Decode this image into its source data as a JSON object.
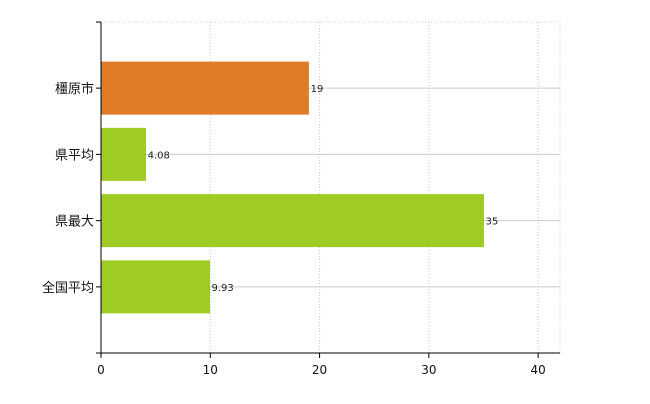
{
  "chart_data": {
    "type": "bar",
    "orientation": "horizontal",
    "categories": [
      "橿原市",
      "県平均",
      "県最大",
      "全国平均"
    ],
    "values": [
      19,
      4.08,
      35,
      9.93
    ],
    "value_labels": [
      "19",
      "4.08",
      "35",
      "9.93"
    ],
    "bar_colors": [
      "#e07b26",
      "#9fcc23",
      "#9fcc23",
      "#9fcc23"
    ],
    "xlim": [
      0,
      42
    ],
    "x_ticks": [
      0,
      10,
      20,
      30,
      40
    ],
    "x_tick_labels": [
      "0",
      "10",
      "20",
      "30",
      "40"
    ],
    "grid": true,
    "grid_style": "dotted vertical",
    "title": "",
    "xlabel": "",
    "ylabel": ""
  }
}
